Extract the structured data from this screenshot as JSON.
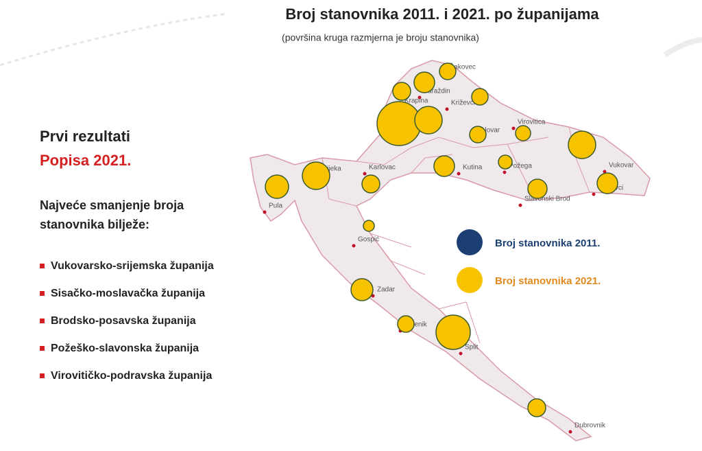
{
  "header": {
    "title": "Broj stanovnika 2011. i 2021. po županijama",
    "subtitle": "(površina kruga razmjerna je broju stanovnika)"
  },
  "sidebar": {
    "heading": "Prvi rezultati",
    "heading_highlight": "Popisa 2021.",
    "intro_line1": "Najveće smanjenje broja",
    "intro_line2": "stanovnika bilježe:",
    "items": [
      "Vukovarsko-srijemska županija",
      "Sisačko-moslavačka županija",
      "Brodsko-posavska županija",
      "Požeško-slavonska županija",
      "Virovitičko-podravska županija"
    ]
  },
  "legend": {
    "items": [
      "Broj stanovnika 2011.",
      "Broj stanovnika 2021."
    ]
  },
  "map": {
    "cities": [
      "Čakovec",
      "Varaždin",
      "Krapina",
      "Križevci",
      "Virovitica",
      "Bjelovar",
      "Karlovac",
      "Kutina",
      "Požega",
      "Vukovar",
      "Vinkovci",
      "Slavonski Brod",
      "Rijeka",
      "Pula",
      "Gospić",
      "Zadar",
      "Šibenik",
      "Split",
      "Dubrovnik"
    ]
  }
}
